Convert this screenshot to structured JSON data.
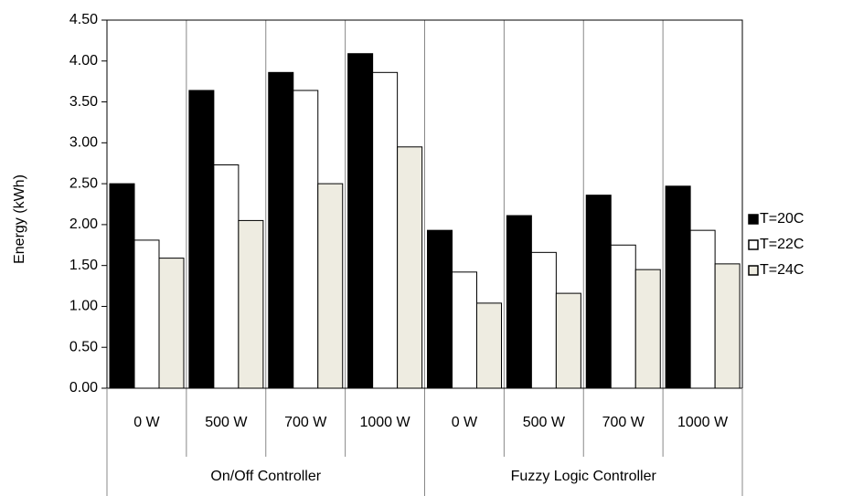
{
  "chart_data": {
    "type": "bar",
    "y_label": "Energy (kWh)",
    "groups": [
      {
        "label": "On/Off Controller",
        "categories": [
          "0 W",
          "500 W",
          "700 W",
          "1000 W"
        ]
      },
      {
        "label": "Fuzzy Logic Controller",
        "categories": [
          "0 W",
          "500 W",
          "700 W",
          "1000 W"
        ]
      }
    ],
    "series": [
      {
        "name": "T=20C",
        "color": "#000000",
        "values": [
          2.5,
          3.64,
          3.86,
          4.09,
          1.93,
          2.11,
          2.36,
          2.47
        ]
      },
      {
        "name": "T=22C",
        "color": "#ffffff",
        "values": [
          1.81,
          2.73,
          3.64,
          3.86,
          1.42,
          1.66,
          1.75,
          1.93
        ]
      },
      {
        "name": "T=24C",
        "color": "#eeece1",
        "values": [
          1.59,
          2.05,
          2.5,
          2.95,
          1.04,
          1.16,
          1.45,
          1.52
        ]
      }
    ],
    "ylim": [
      0,
      4.5
    ],
    "yticks": [
      {
        "value": 0,
        "label": "0.00"
      },
      {
        "value": 0.5,
        "label": "0.50"
      },
      {
        "value": 1,
        "label": "1.00"
      },
      {
        "value": 1.5,
        "label": "1.50"
      },
      {
        "value": 2,
        "label": "2.00"
      },
      {
        "value": 2.5,
        "label": "2.50"
      },
      {
        "value": 3,
        "label": "3.00"
      },
      {
        "value": 3.5,
        "label": "3.50"
      },
      {
        "value": 4,
        "label": "4.00"
      },
      {
        "value": 4.5,
        "label": "4.50"
      }
    ],
    "legend": "right"
  }
}
